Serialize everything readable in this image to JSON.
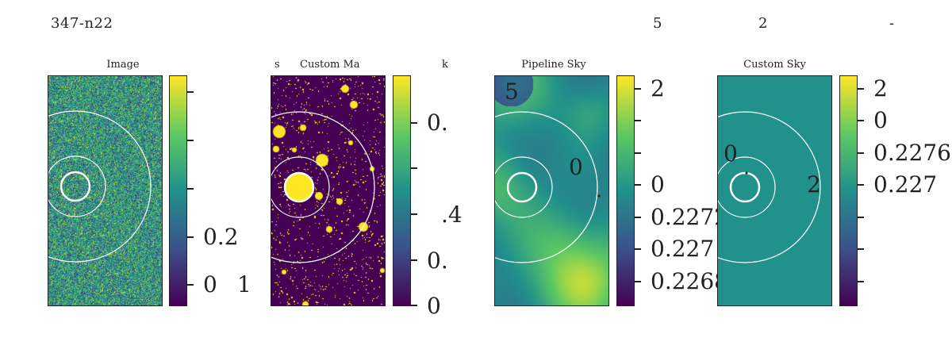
{
  "header": {
    "suptitle": "347-n22",
    "fragment_5": "5",
    "fragment_2": "2",
    "fragment_dash": "-"
  },
  "colormap": "viridis",
  "chart_data": [
    {
      "type": "heatmap",
      "title": "Image",
      "image": "noise",
      "colorbar": {
        "tick_labels": [
          "",
          "",
          "",
          "0.2",
          "0"
        ],
        "extra_label": "1"
      }
    },
    {
      "type": "heatmap",
      "title": "Custom Ma",
      "title_left_fragment": "s",
      "title_right_fragment": "k",
      "image": "source-mask",
      "colorbar": {
        "tick_labels": [
          "0.",
          "",
          ".4",
          "0.",
          "0"
        ]
      }
    },
    {
      "type": "heatmap",
      "title": "Pipeline Sky",
      "image": "smooth-sky",
      "overlay_labels": [
        "5",
        "0"
      ],
      "colorbar": {
        "tick_labels": [
          "2",
          "",
          "",
          "0",
          "0.2272",
          "0.227",
          "0.2268"
        ]
      }
    },
    {
      "type": "heatmap",
      "title": "Custom Sky",
      "image": "flat",
      "overlay_labels": [
        "0",
        "2"
      ],
      "colorbar": {
        "tick_labels": [
          "2",
          "0",
          "0.2276",
          "0.227",
          "",
          "",
          ""
        ]
      }
    }
  ]
}
